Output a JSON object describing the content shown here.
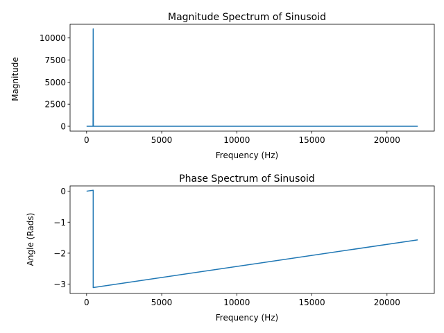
{
  "chart_data": [
    {
      "type": "line",
      "title": "Magnitude Spectrum of Sinusoid",
      "xlabel": "Frequency (Hz)",
      "ylabel": "Magnitude",
      "xlim": [
        -1100,
        23150
      ],
      "ylim": [
        -550,
        11550
      ],
      "xticks": [
        0,
        5000,
        10000,
        15000,
        20000
      ],
      "xtick_labels": [
        "0",
        "5000",
        "10000",
        "15000",
        "20000"
      ],
      "yticks": [
        0,
        2500,
        5000,
        7500,
        10000
      ],
      "ytick_labels": [
        "0",
        "2500",
        "5000",
        "7500",
        "10000"
      ],
      "grid": false,
      "series": [
        {
          "color": "#1f77b4",
          "x": [
            0,
            430,
            440,
            450,
            22050
          ],
          "y": [
            0,
            0,
            11025,
            0,
            0
          ]
        }
      ]
    },
    {
      "type": "line",
      "title": "Phase Spectrum of Sinusoid",
      "xlabel": "Frequency (Hz)",
      "ylabel": "Angle (Rads)",
      "xlim": [
        -1100,
        23150
      ],
      "ylim": [
        -3.3,
        0.17
      ],
      "xticks": [
        0,
        5000,
        10000,
        15000,
        20000
      ],
      "xtick_labels": [
        "0",
        "5000",
        "10000",
        "15000",
        "20000"
      ],
      "yticks": [
        0,
        -1,
        -2,
        -3
      ],
      "ytick_labels": [
        "0",
        "−1",
        "−2",
        "−3"
      ],
      "grid": false,
      "series": [
        {
          "color": "#1f77b4",
          "x": [
            0,
            440,
            440,
            22050
          ],
          "y": [
            0,
            0.03,
            -3.11,
            -1.57
          ]
        }
      ]
    }
  ]
}
